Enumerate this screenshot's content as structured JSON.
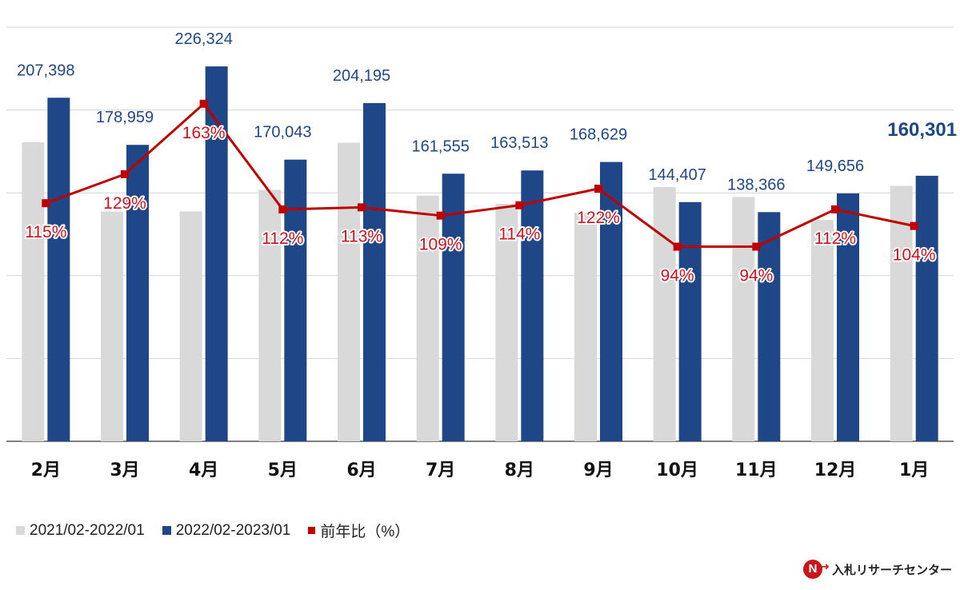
{
  "chart_data": {
    "type": "bar",
    "categories": [
      "2月",
      "3月",
      "4月",
      "5月",
      "6月",
      "7月",
      "8月",
      "9月",
      "10月",
      "11月",
      "12月",
      "1月"
    ],
    "series": [
      {
        "name": "2021/02-2022/01",
        "color": "#d9d9d9",
        "values": [
          180500,
          138700,
          138800,
          151800,
          180300,
          148300,
          143300,
          138000,
          153500,
          147500,
          133600,
          154200
        ]
      },
      {
        "name": "2022/02-2023/01",
        "color": "#1f4787",
        "values": [
          207398,
          178959,
          226324,
          170043,
          204195,
          161555,
          163513,
          168629,
          144407,
          138366,
          149656,
          160301
        ],
        "labels": [
          "207,398",
          "178,959",
          "226,324",
          "170,043",
          "204,195",
          "161,555",
          "163,513",
          "168,629",
          "144,407",
          "138,366",
          "149,656",
          "160,301"
        ]
      }
    ],
    "ratio_series": {
      "name": "前年比（%）",
      "color": "#c00000",
      "values": [
        115,
        129,
        163,
        112,
        113,
        109,
        114,
        122,
        94,
        94,
        112,
        104
      ],
      "labels": [
        "115%",
        "129%",
        "163%",
        "112%",
        "113%",
        "109%",
        "114%",
        "122%",
        "94%",
        "94%",
        "112%",
        "104%"
      ],
      "range": [
        0,
        200
      ]
    },
    "ylim": [
      0,
      250000
    ],
    "gridlines": [
      0,
      50000,
      100000,
      150000,
      200000,
      250000
    ],
    "grid": true,
    "legend_position": "bottom-left"
  },
  "legend": {
    "items": [
      {
        "label": "2021/02-2022/01",
        "color": "#d9d9d9"
      },
      {
        "label": "2022/02-2023/01",
        "color": "#1f4787"
      },
      {
        "label": "前年比（%）",
        "color": "#c00000"
      }
    ]
  },
  "brand": {
    "mark": "N",
    "name": "入札リサーチセンター"
  }
}
